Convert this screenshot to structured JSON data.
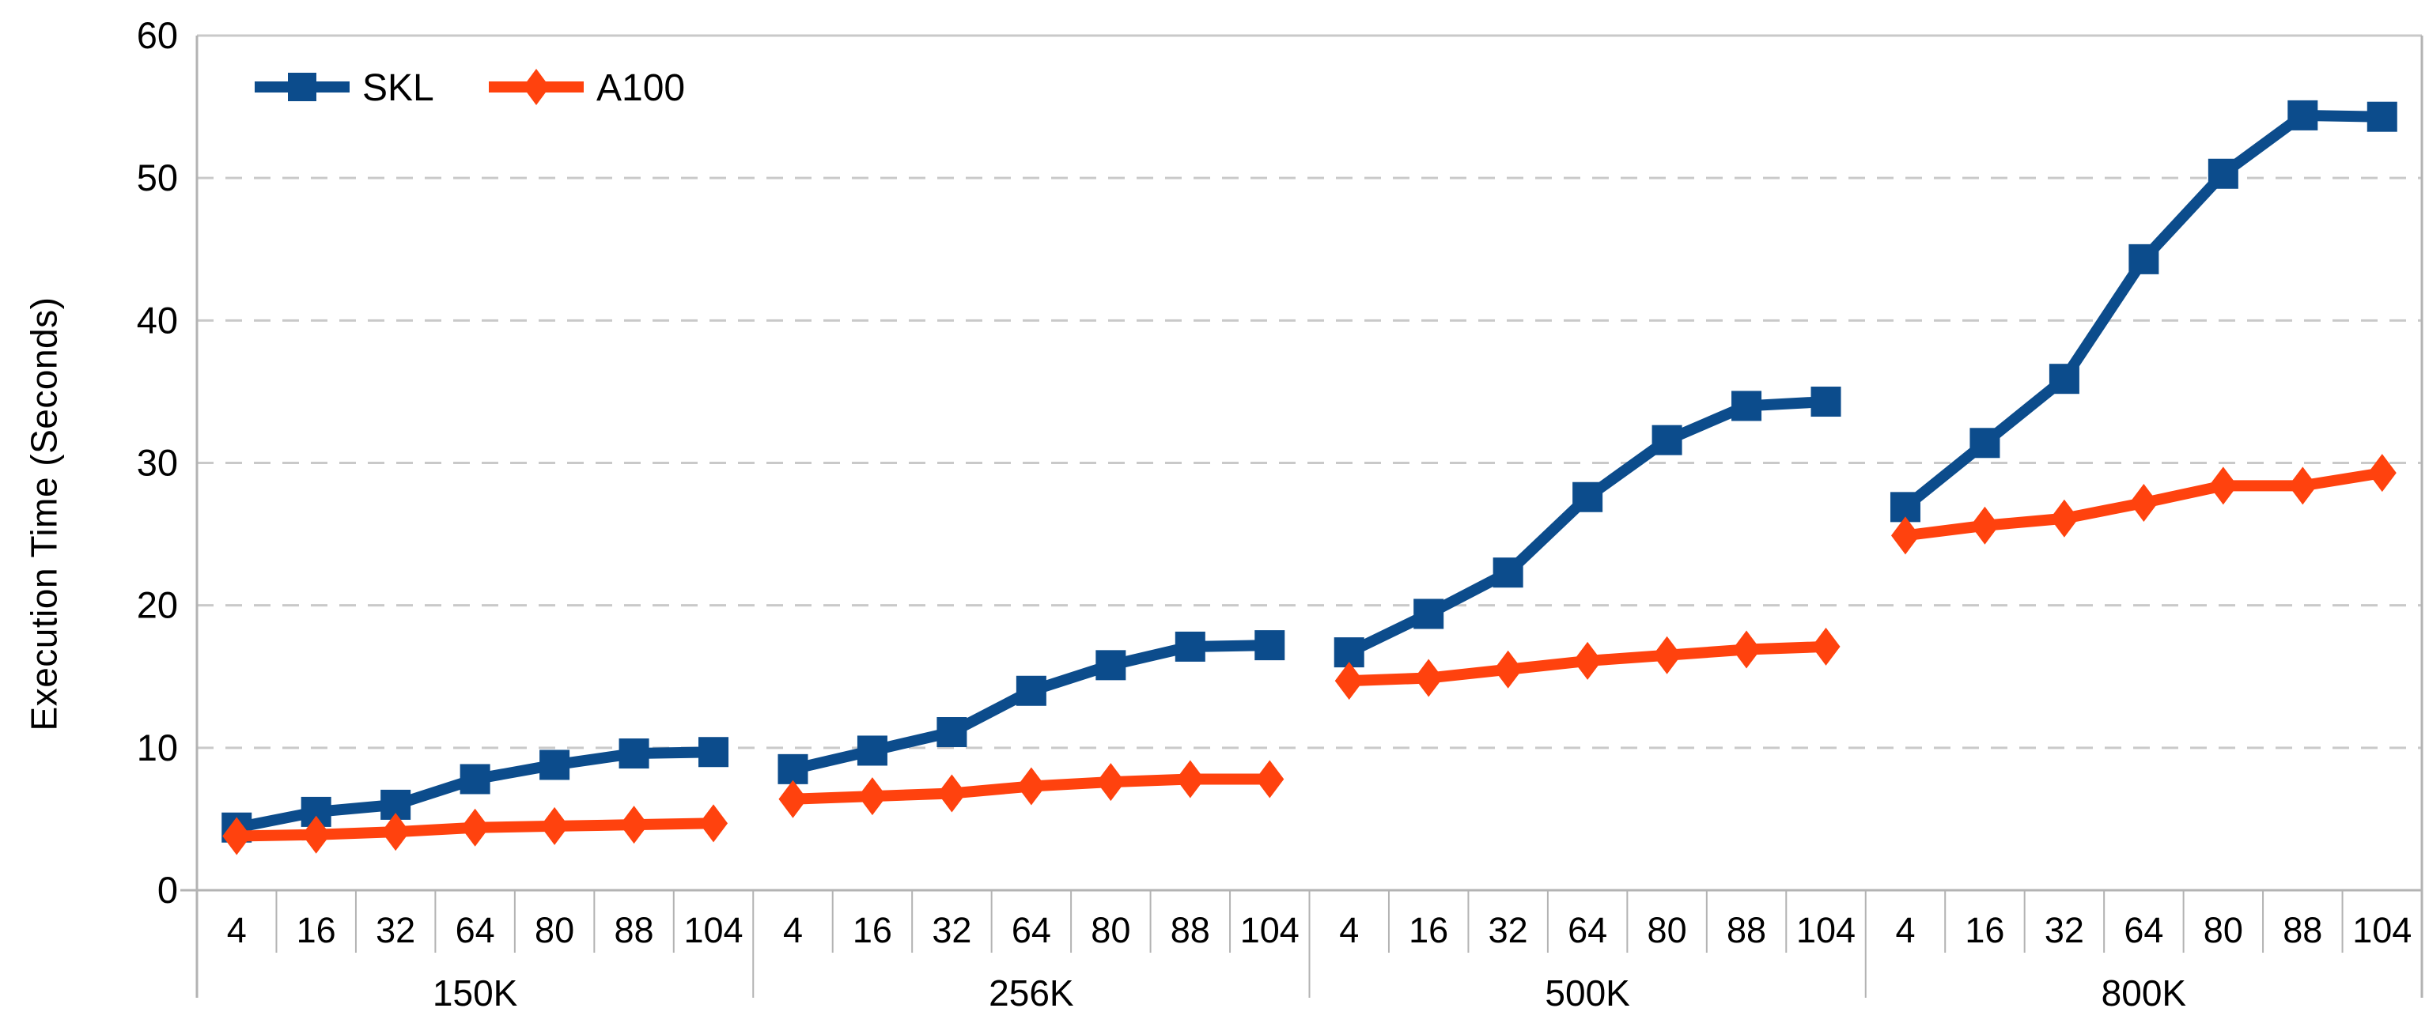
{
  "chart_data": {
    "type": "line",
    "title": "",
    "ylabel": "Execution Time (Seconds)",
    "xlabel": "",
    "ylim": [
      0,
      60
    ],
    "yticks": [
      0,
      10,
      20,
      30,
      40,
      50,
      60
    ],
    "grid": "horizontal dashed gridlines at 10-50, solid at 60",
    "legend_position": "top-left inside plot",
    "groups": [
      "150K",
      "256K",
      "500K",
      "800K"
    ],
    "x_ticks_per_group": [
      "4",
      "16",
      "32",
      "64",
      "80",
      "88",
      "104"
    ],
    "series": [
      {
        "name": "SKL",
        "color": "#0c4c8c",
        "marker": "square",
        "values_by_group": {
          "150K": [
            4.4,
            5.5,
            6.0,
            7.8,
            8.8,
            9.6,
            9.7
          ],
          "256K": [
            8.5,
            9.8,
            11.1,
            14.0,
            15.8,
            17.1,
            17.2
          ],
          "500K": [
            16.7,
            19.4,
            22.3,
            27.6,
            31.6,
            34.0,
            34.3
          ],
          "800K": [
            26.9,
            31.4,
            35.9,
            44.3,
            50.3,
            54.4,
            54.3
          ]
        }
      },
      {
        "name": "A100",
        "color": "#ff420e",
        "marker": "diamond",
        "values_by_group": {
          "150K": [
            3.8,
            3.9,
            4.1,
            4.4,
            4.5,
            4.6,
            4.7
          ],
          "256K": [
            6.4,
            6.6,
            6.8,
            7.3,
            7.6,
            7.8,
            7.8
          ],
          "500K": [
            14.7,
            14.9,
            15.5,
            16.1,
            16.5,
            16.9,
            17.1
          ],
          "800K": [
            24.9,
            25.6,
            26.1,
            27.2,
            28.4,
            28.4,
            29.3
          ]
        }
      }
    ],
    "colors": {
      "gridline": "#c9c9c9",
      "axis": "#b3b3b3",
      "text": "#000000",
      "background": "#ffffff"
    }
  }
}
